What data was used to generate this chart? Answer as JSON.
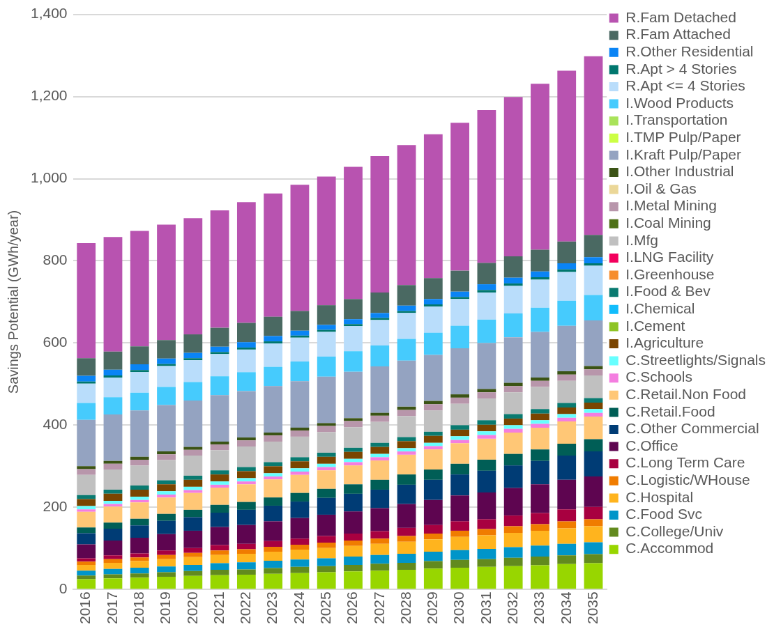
{
  "chart_data": {
    "type": "bar",
    "stacked": true,
    "ylabel": "Savings Potential (GWh/year)",
    "legend": "right",
    "grid": "y",
    "categories": [
      "2016",
      "2017",
      "2018",
      "2019",
      "2020",
      "2021",
      "2022",
      "2023",
      "2024",
      "2025",
      "2026",
      "2027",
      "2028",
      "2029",
      "2030",
      "2031",
      "2032",
      "2033",
      "2034",
      "2035"
    ],
    "ylim": [
      0,
      1400
    ],
    "yticks": [
      0,
      200,
      400,
      600,
      800,
      {
        "value": 1000,
        "label": "1,000"
      },
      {
        "value": 1200,
        "label": "1,200"
      },
      {
        "value": 1400,
        "label": "1,400"
      }
    ],
    "series": [
      {
        "name": "C.Accommod",
        "color": "#98d600",
        "values": [
          25,
          27,
          29,
          31,
          33,
          35,
          36,
          38,
          40,
          42,
          44,
          46,
          48,
          51,
          53,
          55,
          57,
          59,
          62,
          64
        ]
      },
      {
        "name": "C.College/Univ",
        "color": "#628a1e",
        "values": [
          9,
          10,
          10,
          11,
          12,
          13,
          13,
          14,
          15,
          15,
          16,
          17,
          17,
          18,
          19,
          19,
          20,
          21,
          21,
          22
        ]
      },
      {
        "name": "C.Food Svc",
        "color": "#0095c9",
        "values": [
          12,
          13,
          14,
          14,
          15,
          16,
          17,
          18,
          18,
          19,
          20,
          21,
          22,
          23,
          24,
          25,
          26,
          27,
          28,
          29
        ]
      },
      {
        "name": "C.Hospital",
        "color": "#ffb41e",
        "values": [
          14,
          15,
          16,
          18,
          19,
          20,
          21,
          22,
          24,
          25,
          26,
          27,
          29,
          30,
          32,
          33,
          35,
          36,
          38,
          39
        ]
      },
      {
        "name": "C.Logistic/WHouse",
        "color": "#f07c00",
        "values": [
          8,
          9,
          9,
          10,
          10,
          11,
          11,
          12,
          12,
          13,
          13,
          13,
          14,
          14,
          15,
          15,
          16,
          16,
          17,
          17
        ]
      },
      {
        "name": "C.Long Term Care",
        "color": "#a80040",
        "values": [
          8,
          9,
          10,
          11,
          12,
          13,
          13,
          14,
          15,
          16,
          17,
          18,
          20,
          21,
          23,
          24,
          26,
          27,
          29,
          30
        ]
      },
      {
        "name": "C.Office",
        "color": "#5e0550",
        "values": [
          34,
          36,
          38,
          40,
          42,
          44,
          46,
          48,
          50,
          52,
          54,
          56,
          58,
          61,
          63,
          65,
          67,
          70,
          72,
          74
        ]
      },
      {
        "name": "C.Other Commercial",
        "color": "#003c75",
        "values": [
          27,
          29,
          30,
          32,
          33,
          35,
          37,
          38,
          40,
          41,
          43,
          45,
          47,
          49,
          51,
          53,
          55,
          57,
          59,
          61
        ]
      },
      {
        "name": "C.Retail.Food",
        "color": "#005e56",
        "values": [
          14,
          15,
          16,
          17,
          18,
          19,
          19,
          20,
          21,
          22,
          23,
          24,
          25,
          25,
          26,
          27,
          28,
          28,
          29,
          30
        ]
      },
      {
        "name": "C.Retail.Non Food",
        "color": "#ffc776",
        "values": [
          38,
          39,
          40,
          40,
          41,
          42,
          43,
          44,
          44,
          45,
          46,
          47,
          48,
          49,
          50,
          51,
          52,
          53,
          54,
          55
        ]
      },
      {
        "name": "C.Schools",
        "color": "#f47ee0",
        "values": [
          6,
          6,
          6,
          7,
          7,
          7,
          7,
          7,
          8,
          8,
          8,
          8,
          8,
          8,
          8,
          9,
          9,
          9,
          9,
          9
        ]
      },
      {
        "name": "C.Streetlights/Signals",
        "color": "#67ffff",
        "values": [
          8,
          8,
          8,
          8,
          8,
          8,
          8,
          8,
          8,
          8,
          8,
          8,
          8,
          8,
          9,
          9,
          9,
          9,
          9,
          9
        ]
      },
      {
        "name": "I.Agriculture",
        "color": "#7a4500",
        "values": [
          17,
          17,
          17,
          17,
          17,
          17,
          17,
          17,
          17,
          17,
          17,
          17,
          17,
          17,
          16,
          16,
          16,
          16,
          16,
          16
        ]
      },
      {
        "name": "I.Cement",
        "color": "#8ec424",
        "values": [
          0,
          0,
          0,
          0,
          0,
          0,
          0,
          0,
          0,
          0,
          0,
          0,
          0,
          0,
          0,
          0,
          0,
          0,
          0,
          0
        ]
      },
      {
        "name": "I.Chemical",
        "color": "#12bdfc",
        "values": [
          0,
          0,
          0,
          0,
          0,
          0,
          0,
          0,
          0,
          0,
          0,
          0,
          0,
          0,
          0,
          0,
          0,
          0,
          0,
          0
        ]
      },
      {
        "name": "I.Food & Bev",
        "color": "#0a7a70",
        "values": [
          10,
          10,
          10,
          10,
          10,
          10,
          10,
          10,
          10,
          10,
          10,
          10,
          10,
          10,
          11,
          11,
          11,
          11,
          11,
          11
        ]
      },
      {
        "name": "I.Greenhouse",
        "color": "#f68e2e",
        "values": [
          0,
          0,
          0,
          0,
          0,
          0,
          0,
          0,
          0,
          0,
          0,
          0,
          0,
          0,
          0,
          0,
          0,
          0,
          0,
          0
        ]
      },
      {
        "name": "I.LNG Facility",
        "color": "#f3005d",
        "values": [
          0,
          0,
          0,
          0,
          0,
          0,
          0,
          0,
          0,
          0,
          0,
          0,
          0,
          0,
          0,
          0,
          0,
          0,
          0,
          0
        ]
      },
      {
        "name": "I.Mfg",
        "color": "#c0c0c0",
        "values": [
          49,
          49,
          49,
          49,
          49,
          49,
          50,
          50,
          50,
          50,
          50,
          51,
          51,
          52,
          52,
          53,
          53,
          54,
          54,
          55
        ]
      },
      {
        "name": "I.Coal Mining",
        "color": "#4e7116",
        "values": [
          0,
          0,
          0,
          0,
          0,
          0,
          0,
          0,
          0,
          0,
          0,
          0,
          0,
          0,
          0,
          0,
          0,
          0,
          0,
          0
        ]
      },
      {
        "name": "I.Metal Mining",
        "color": "#b896ab",
        "values": [
          14,
          14,
          14,
          14,
          14,
          14,
          15,
          15,
          15,
          15,
          15,
          15,
          15,
          15,
          15,
          15,
          15,
          15,
          15,
          15
        ]
      },
      {
        "name": "I.Oil & Gas",
        "color": "#ebd798",
        "values": [
          0,
          0,
          0,
          0,
          0,
          0,
          0,
          0,
          0,
          0,
          0,
          0,
          0,
          0,
          0,
          0,
          0,
          0,
          0,
          0
        ]
      },
      {
        "name": "I.Other Industrial",
        "color": "#3b5315",
        "values": [
          7,
          7,
          7,
          7,
          7,
          7,
          7,
          7,
          7,
          7,
          7,
          7,
          8,
          8,
          8,
          8,
          8,
          8,
          8,
          8
        ]
      },
      {
        "name": "I.Kraft Pulp/Paper",
        "color": "#94a3c1",
        "values": [
          113,
          113,
          113,
          113,
          113,
          113,
          113,
          113,
          113,
          113,
          113,
          113,
          112,
          112,
          112,
          112,
          111,
          111,
          111,
          111
        ]
      },
      {
        "name": "I.TMP Pulp/Paper",
        "color": "#ccff44",
        "values": [
          0,
          0,
          0,
          0,
          0,
          0,
          0,
          0,
          0,
          0,
          0,
          0,
          0,
          0,
          0,
          0,
          0,
          0,
          0,
          0
        ]
      },
      {
        "name": "I.Transportation",
        "color": "#a9e35a",
        "values": [
          0,
          0,
          0,
          0,
          0,
          0,
          0,
          0,
          0,
          0,
          0,
          0,
          0,
          0,
          0,
          0,
          0,
          0,
          0,
          0
        ]
      },
      {
        "name": "I.Wood Products",
        "color": "#46cbfd",
        "values": [
          41,
          42,
          43,
          44,
          45,
          46,
          46,
          47,
          48,
          49,
          50,
          51,
          53,
          54,
          55,
          57,
          58,
          59,
          61,
          62
        ]
      },
      {
        "name": "R.Apt <= 4 Stories",
        "color": "#b9ddfb",
        "values": [
          47,
          48,
          50,
          51,
          53,
          54,
          55,
          57,
          58,
          60,
          61,
          62,
          63,
          64,
          65,
          66,
          67,
          68,
          70,
          71
        ]
      },
      {
        "name": "R.Apt > 4 Stories",
        "color": "#00776e",
        "values": [
          5,
          5,
          5,
          5,
          5,
          5,
          5,
          5,
          5,
          5,
          5,
          5,
          5,
          5,
          5,
          6,
          6,
          6,
          6,
          6
        ]
      },
      {
        "name": "R.Other Residential",
        "color": "#0a84f5",
        "values": [
          14,
          14,
          14,
          13,
          13,
          13,
          13,
          13,
          12,
          12,
          12,
          12,
          13,
          13,
          13,
          14,
          14,
          14,
          15,
          15
        ]
      },
      {
        "name": "R.Fam Attached",
        "color": "#4a6962",
        "values": [
          43,
          44,
          44,
          45,
          45,
          46,
          47,
          47,
          48,
          48,
          49,
          50,
          50,
          51,
          51,
          52,
          52,
          53,
          53,
          54
        ]
      },
      {
        "name": "R.Fam Detached",
        "color": "#b853b0",
        "values": [
          280,
          279,
          281,
          281,
          283,
          286,
          294,
          300,
          307,
          313,
          322,
          332,
          341,
          350,
          360,
          372,
          388,
          404,
          416,
          435
        ]
      }
    ]
  }
}
